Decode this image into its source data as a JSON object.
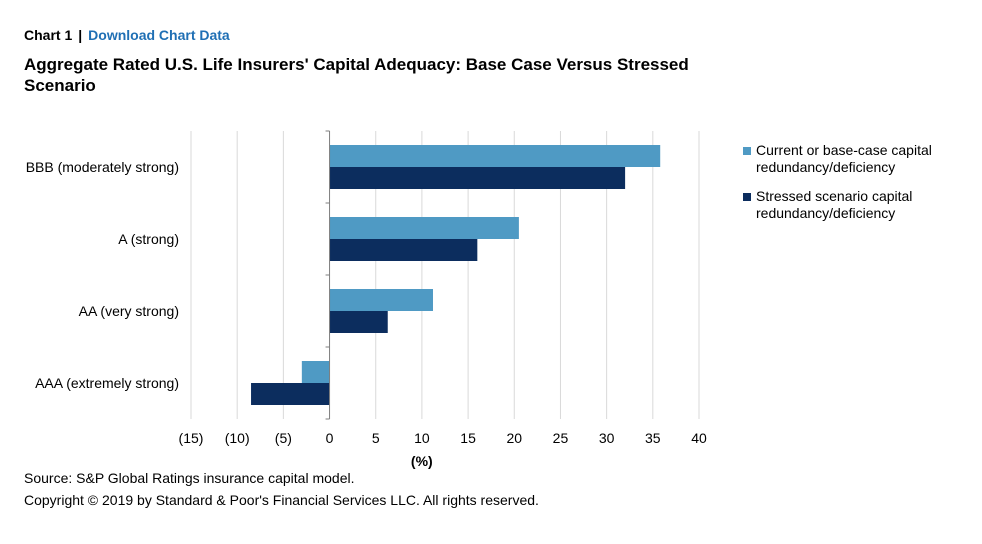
{
  "header": {
    "chart_label": "Chart 1",
    "separator": "|",
    "download_link": "Download Chart Data"
  },
  "colors": {
    "base_case": "#4f9ac4",
    "stressed": "#0c2d5e",
    "grid": "#d9d9d9",
    "axis": "#7f7f7f",
    "link": "#1f6fb4"
  },
  "chart_data": {
    "type": "bar",
    "orientation": "horizontal",
    "title": "Aggregate Rated U.S. Life Insurers' Capital Adequacy: Base Case Versus Stressed Scenario",
    "categories": [
      "BBB (moderately strong)",
      "A (strong)",
      "AA (very strong)",
      "AAA (extremely strong)"
    ],
    "series": [
      {
        "name": "Current or base-case capital redundancy/deficiency",
        "values": [
          35.8,
          20.5,
          11.2,
          -3.0
        ]
      },
      {
        "name": "Stressed scenario capital redundancy/deficiency",
        "values": [
          32.0,
          16.0,
          6.3,
          -8.5
        ]
      }
    ],
    "xlabel": "(%)",
    "xlim": [
      -15,
      40
    ],
    "xticks": [
      -15,
      -10,
      -5,
      0,
      5,
      10,
      15,
      20,
      25,
      30,
      35,
      40
    ],
    "xtick_labels": [
      "(15)",
      "(10)",
      "(5)",
      "0",
      "5",
      "10",
      "15",
      "20",
      "25",
      "30",
      "35",
      "40"
    ],
    "grid": "vertical",
    "legend_position": "right"
  },
  "footer": {
    "source": "Source: S&P Global Ratings insurance capital model.",
    "copyright": "Copyright © 2019 by Standard & Poor's Financial Services LLC. All rights reserved."
  }
}
